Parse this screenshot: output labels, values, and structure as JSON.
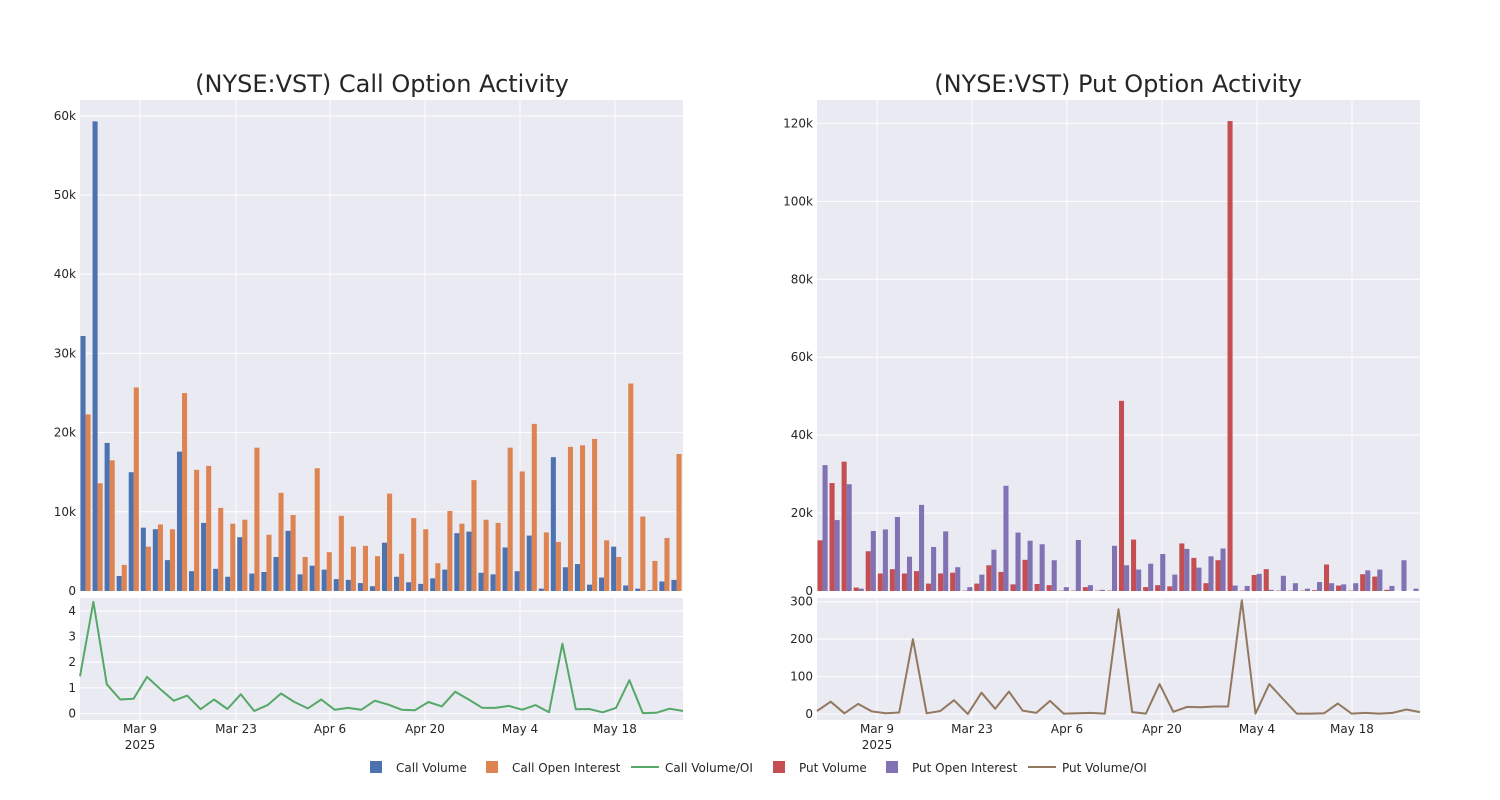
{
  "colors": {
    "call_volume": "#4c72b0",
    "call_oi": "#dd8452",
    "call_ratio": "#55a868",
    "put_volume": "#c44e52",
    "put_oi": "#8172b3",
    "put_ratio": "#937860",
    "panel_bg": "#eaeaf2",
    "grid": "#ffffff"
  },
  "legend": {
    "call_volume": "Call Volume",
    "call_oi": "Call Open Interest",
    "call_ratio": "Call Volume/OI",
    "put_volume": "Put Volume",
    "put_oi": "Put Open Interest",
    "put_ratio": "Put Volume/OI"
  },
  "chart_data": [
    {
      "type": "bar",
      "title": "(NYSE:VST) Call Option Activity",
      "x_tick_labels": [
        "Mar 9",
        "Mar 23",
        "Apr 6",
        "Apr 20",
        "May 4",
        "May 18"
      ],
      "x_year_label": "2025",
      "y_tick_labels": [
        "0",
        "10k",
        "20k",
        "30k",
        "40k",
        "50k",
        "60k"
      ],
      "ratio_tick_labels": [
        "0",
        "1",
        "2",
        "3",
        "4"
      ],
      "ylim": [
        0,
        62000
      ],
      "ratio_ylim": [
        -0.25,
        4.5
      ],
      "series": [
        {
          "name": "Call Volume",
          "values": [
            32200,
            59300,
            18700,
            1900,
            15000,
            8000,
            7800,
            3900,
            17600,
            2500,
            8600,
            2800,
            1800,
            6800,
            2200,
            2400,
            4300,
            7600,
            2100,
            3200,
            2700,
            1500,
            1400,
            1000,
            600,
            6100,
            1800,
            1100,
            900,
            1600,
            2700,
            7300,
            7500,
            2300,
            2100,
            5500,
            2500,
            7000,
            300,
            16900,
            3000,
            3400,
            800,
            1700,
            5600,
            700,
            300,
            100,
            1200,
            1400
          ]
        },
        {
          "name": "Call Open Interest",
          "values": [
            22300,
            13600,
            16500,
            3300,
            25700,
            5600,
            8400,
            7800,
            25000,
            15300,
            15800,
            10500,
            8500,
            9000,
            18100,
            7100,
            12400,
            9600,
            4300,
            15500,
            4900,
            9500,
            5600,
            5700,
            4400,
            12300,
            4700,
            9200,
            7800,
            3500,
            10100,
            8500,
            14000,
            9000,
            8600,
            18100,
            15100,
            21100,
            7400,
            6200,
            18200,
            18400,
            19200,
            6400,
            4300,
            26200,
            9400,
            3800,
            6700,
            17300
          ]
        },
        {
          "name": "Call Volume/OI",
          "values": [
            1.45,
            4.35,
            1.14,
            0.55,
            0.58,
            1.43,
            0.95,
            0.5,
            0.7,
            0.17,
            0.55,
            0.18,
            0.75,
            0.1,
            0.33,
            0.78,
            0.45,
            0.2,
            0.55,
            0.15,
            0.22,
            0.15,
            0.5,
            0.35,
            0.15,
            0.13,
            0.45,
            0.28,
            0.85,
            0.55,
            0.23,
            0.22,
            0.3,
            0.15,
            0.33,
            0.05,
            2.72,
            0.17,
            0.18,
            0.05,
            0.22,
            1.3,
            0.02,
            0.03,
            0.19,
            0.1
          ]
        }
      ]
    },
    {
      "type": "bar",
      "title": "(NYSE:VST) Put Option Activity",
      "x_tick_labels": [
        "Mar 9",
        "Mar 23",
        "Apr 6",
        "Apr 20",
        "May 4",
        "May 18"
      ],
      "x_year_label": "2025",
      "y_tick_labels": [
        "0",
        "20k",
        "40k",
        "60k",
        "80k",
        "100k",
        "120k"
      ],
      "ratio_tick_labels": [
        "0",
        "100",
        "200",
        "300"
      ],
      "ylim": [
        0,
        126000
      ],
      "ratio_ylim": [
        -16,
        310
      ],
      "series": [
        {
          "name": "Put Volume",
          "values": [
            13000,
            27700,
            33200,
            900,
            10200,
            4500,
            5600,
            4500,
            5100,
            1900,
            4500,
            4700,
            100,
            1900,
            6600,
            4900,
            1700,
            8000,
            1800,
            1500,
            100,
            100,
            1000,
            100,
            100,
            48800,
            13200,
            1000,
            1500,
            1200,
            12200,
            8500,
            2000,
            7900,
            120600,
            100,
            4100,
            5600,
            100,
            100,
            100,
            200,
            6800,
            1400,
            100,
            4300,
            3700,
            300
          ]
        },
        {
          "name": "Put Open Interest",
          "values": [
            32300,
            18200,
            27400,
            600,
            15400,
            15800,
            19000,
            8800,
            22100,
            11300,
            15300,
            6100,
            1000,
            4200,
            10600,
            27000,
            15000,
            12900,
            12000,
            7900,
            1000,
            13100,
            1500,
            300,
            11600,
            6600,
            5500,
            7000,
            9500,
            4200,
            10800,
            6000,
            8900,
            10900,
            1400,
            1300,
            4400,
            300,
            3900,
            2000,
            600,
            2300,
            2000,
            1700,
            2000,
            5300,
            5500,
            1300,
            7900,
            600
          ]
        },
        {
          "name": "Put Volume/OI",
          "values": [
            8,
            33,
            2,
            27,
            7,
            2,
            4,
            200,
            2,
            8,
            37,
            0,
            57,
            14,
            60,
            9,
            3,
            35,
            1,
            2,
            3,
            1,
            280,
            5,
            1,
            80,
            6,
            19,
            18,
            20,
            20,
            304,
            1,
            80,
            40,
            1,
            1,
            2,
            28,
            1,
            3,
            1,
            3,
            12,
            5
          ]
        }
      ]
    }
  ]
}
